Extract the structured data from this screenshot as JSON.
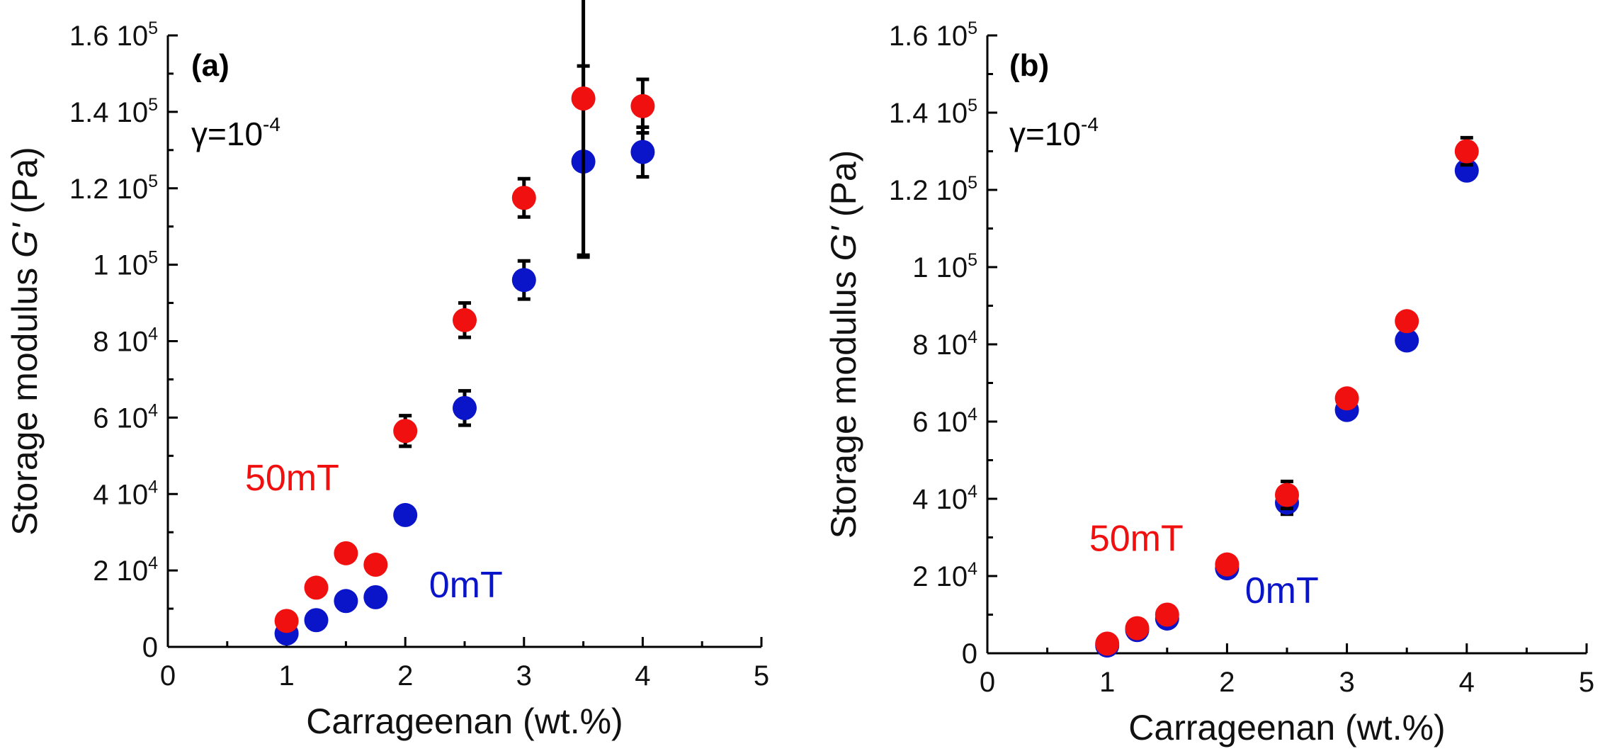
{
  "chart_data": [
    {
      "type": "scatter",
      "panel_label": "(a)",
      "annotation": {
        "base": "γ=10",
        "exp": "-4"
      },
      "xlabel": "Carrageenan (wt.%)",
      "ylabel": {
        "main": "Storage modulus ",
        "italic": "G'",
        "unit": " (Pa)"
      },
      "xlim": [
        0,
        5
      ],
      "ylim": [
        0,
        160000
      ],
      "xticks": [
        0,
        1,
        2,
        3,
        4,
        5
      ],
      "xtick_labels": [
        "0",
        "1",
        "2",
        "3",
        "4",
        "5"
      ],
      "yticks": [
        0,
        20000,
        40000,
        60000,
        80000,
        100000,
        120000,
        140000,
        160000
      ],
      "ytick_labels": [
        {
          "m": "0",
          "e": ""
        },
        {
          "m": "2 10",
          "e": "4"
        },
        {
          "m": "4 10",
          "e": "4"
        },
        {
          "m": "6 10",
          "e": "4"
        },
        {
          "m": "8 10",
          "e": "4"
        },
        {
          "m": "1 10",
          "e": "5"
        },
        {
          "m": "1.2 10",
          "e": "5"
        },
        {
          "m": "1.4 10",
          "e": "5"
        },
        {
          "m": "1.6 10",
          "e": "5"
        }
      ],
      "series": [
        {
          "name": "0mT",
          "color": "#0a14c8",
          "x": [
            1,
            1.25,
            1.5,
            1.75,
            2,
            2.5,
            3,
            3.5,
            4
          ],
          "y": [
            3500,
            7000,
            12000,
            13000,
            34500,
            62500,
            96000,
            127000,
            129500
          ],
          "err": [
            0,
            0,
            0,
            0,
            0,
            4500,
            5000,
            25000,
            6500
          ]
        },
        {
          "name": "50mT",
          "color": "#f01010",
          "x": [
            1,
            1.25,
            1.5,
            1.75,
            2,
            2.5,
            3,
            3.5,
            4
          ],
          "y": [
            6800,
            15500,
            24500,
            21500,
            56500,
            85500,
            117500,
            143500,
            141500
          ],
          "err": [
            0,
            0,
            0,
            0,
            4000,
            4500,
            5000,
            41000,
            7000
          ]
        }
      ],
      "series_labels": [
        {
          "text": "50mT",
          "color": "#f01010",
          "x": 0.65,
          "y": 41000
        },
        {
          "text": "0mT",
          "color": "#0a14c8",
          "x": 2.2,
          "y": 13000
        }
      ]
    },
    {
      "type": "scatter",
      "panel_label": "(b)",
      "annotation": {
        "base": "γ=10",
        "exp": "-4"
      },
      "xlabel": "Carrageenan (wt.%)",
      "ylabel": {
        "main": "Storage modulus ",
        "italic": "G'",
        "unit": " (Pa)"
      },
      "xlim": [
        0,
        5
      ],
      "ylim": [
        0,
        160000
      ],
      "xticks": [
        0,
        1,
        2,
        3,
        4,
        5
      ],
      "xtick_labels": [
        "0",
        "1",
        "2",
        "3",
        "4",
        "5"
      ],
      "yticks": [
        0,
        20000,
        40000,
        60000,
        80000,
        100000,
        120000,
        140000,
        160000
      ],
      "ytick_labels": [
        {
          "m": "0",
          "e": ""
        },
        {
          "m": "2 10",
          "e": "4"
        },
        {
          "m": "4 10",
          "e": "4"
        },
        {
          "m": "6 10",
          "e": "4"
        },
        {
          "m": "8 10",
          "e": "4"
        },
        {
          "m": "1 10",
          "e": "5"
        },
        {
          "m": "1.2 10",
          "e": "5"
        },
        {
          "m": "1.4 10",
          "e": "5"
        },
        {
          "m": "1.6 10",
          "e": "5"
        }
      ],
      "series": [
        {
          "name": "0mT",
          "color": "#0a14c8",
          "x": [
            1,
            1.25,
            1.5,
            2,
            2.5,
            3,
            3.5,
            4
          ],
          "y": [
            2000,
            6000,
            9000,
            22000,
            39000,
            63000,
            81000,
            125000
          ],
          "err": [
            0,
            0,
            0,
            0,
            3000,
            0,
            0,
            0
          ]
        },
        {
          "name": "50mT",
          "color": "#f01010",
          "x": [
            1,
            1.25,
            1.5,
            2,
            2.5,
            3,
            3.5,
            4
          ],
          "y": [
            2500,
            6500,
            10000,
            23000,
            41000,
            66000,
            86000,
            130000
          ],
          "err": [
            0,
            0,
            0,
            0,
            3500,
            0,
            0,
            3500
          ]
        }
      ],
      "series_labels": [
        {
          "text": "50mT",
          "color": "#f01010",
          "x": 0.85,
          "y": 26500
        },
        {
          "text": "0mT",
          "color": "#0a14c8",
          "x": 2.15,
          "y": 13000
        }
      ]
    }
  ]
}
